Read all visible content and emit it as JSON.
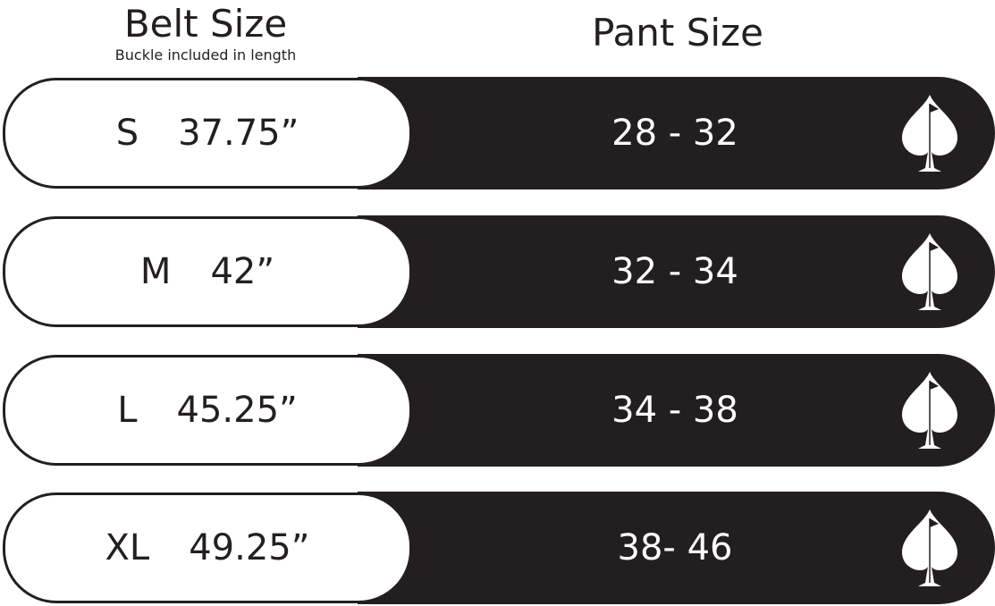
{
  "header": {
    "belt_title": "Belt Size",
    "belt_subtitle": "Buckle included in length",
    "pant_title": "Pant Size"
  },
  "rows": [
    {
      "size": "S",
      "length": "37.75”",
      "pant": "28 - 32"
    },
    {
      "size": "M",
      "length": "42”",
      "pant": "32 - 34"
    },
    {
      "size": "L",
      "length": "45.25”",
      "pant": "34 - 38"
    },
    {
      "size": "XL",
      "length": "49.25”",
      "pant": "38- 46"
    }
  ],
  "icons": {
    "row_icon": "spade-golf-flag-icon"
  },
  "colors": {
    "dark": "#231f20",
    "light": "#ffffff"
  }
}
